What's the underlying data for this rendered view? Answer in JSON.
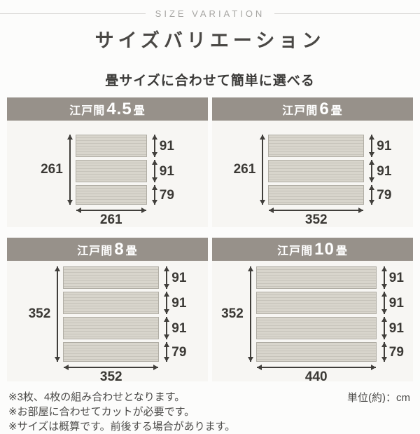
{
  "header": {
    "eyebrow": "SIZE VARIATION",
    "title": "サイズバリエーション",
    "subtitle": "畳サイズに合わせて簡単に選べる"
  },
  "panels": [
    {
      "title_prefix": "江戸間",
      "title_size": "4.5",
      "title_suffix": "畳",
      "total_height_cm": "261",
      "total_width_cm": "261",
      "planks_cm": [
        "91",
        "91",
        "79"
      ]
    },
    {
      "title_prefix": "江戸間",
      "title_size": "6",
      "title_suffix": "畳",
      "total_height_cm": "261",
      "total_width_cm": "352",
      "planks_cm": [
        "91",
        "91",
        "79"
      ]
    },
    {
      "title_prefix": "江戸間",
      "title_size": "8",
      "title_suffix": "畳",
      "total_height_cm": "352",
      "total_width_cm": "352",
      "planks_cm": [
        "91",
        "91",
        "91",
        "79"
      ]
    },
    {
      "title_prefix": "江戸間",
      "title_size": "10",
      "title_suffix": "畳",
      "total_height_cm": "352",
      "total_width_cm": "440",
      "planks_cm": [
        "91",
        "91",
        "91",
        "79"
      ]
    }
  ],
  "footer": {
    "notes": [
      "※3枚、4枚の組み合わせとなります。",
      "※お部屋に合わせてカットが必要です。",
      "※サイズは概算です。前後する場合があります。"
    ],
    "unit": "単位(約)：cm"
  },
  "colors": {
    "panel_header_bg": "#97918a",
    "panel_body_bg": "#f7f6f3",
    "plank_base": "#d8d5cc",
    "plank_stripe": "#c6c3ba",
    "plank_border": "#b0ada4",
    "arrow": "#413f3b",
    "title_ink": "#4a4845"
  }
}
